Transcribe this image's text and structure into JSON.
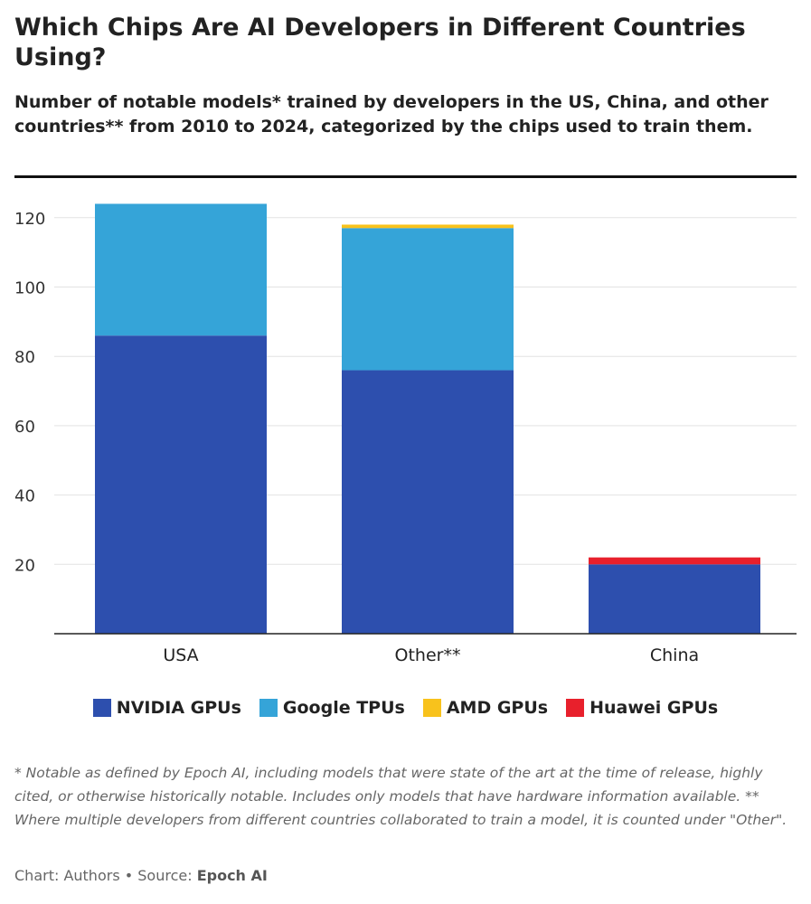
{
  "header": {
    "title": "Which Chips Are AI Developers in Different Countries Using?",
    "subtitle": "Number of notable models* trained by developers in the US, China, and other countries** from 2010 to 2024, categorized by the chips used to train them."
  },
  "chart_data": {
    "type": "bar",
    "stacked": true,
    "categories": [
      "USA",
      "Other**",
      "China"
    ],
    "series": [
      {
        "name": "NVIDIA GPUs",
        "color": "#2d4fae",
        "values": [
          86,
          76,
          20
        ]
      },
      {
        "name": "Google TPUs",
        "color": "#35a4d8",
        "values": [
          38,
          41,
          0
        ]
      },
      {
        "name": "AMD GPUs",
        "color": "#f8c21c",
        "values": [
          0,
          1,
          0
        ]
      },
      {
        "name": "Huawei GPUs",
        "color": "#e8202c",
        "values": [
          0,
          0,
          2
        ]
      }
    ],
    "ylim": [
      0,
      125
    ],
    "yticks": [
      20,
      40,
      60,
      80,
      100,
      120
    ],
    "grid": true,
    "legend_position": "bottom"
  },
  "legend": {
    "items": [
      {
        "label": "NVIDIA GPUs",
        "color": "#2d4fae"
      },
      {
        "label": "Google TPUs",
        "color": "#35a4d8"
      },
      {
        "label": "AMD GPUs",
        "color": "#f8c21c"
      },
      {
        "label": "Huawei GPUs",
        "color": "#e8202c"
      }
    ]
  },
  "footer": {
    "footnote": "* Notable as defined by Epoch AI, including models that were state of the art at the time of release, highly cited, or otherwise historically notable. Includes only models that have hardware information available. ** Where multiple developers from different countries collaborated to train a model, it is counted under \"Other\".",
    "credit_prefix": "Chart: Authors • Source: ",
    "source_name": "Epoch AI"
  }
}
